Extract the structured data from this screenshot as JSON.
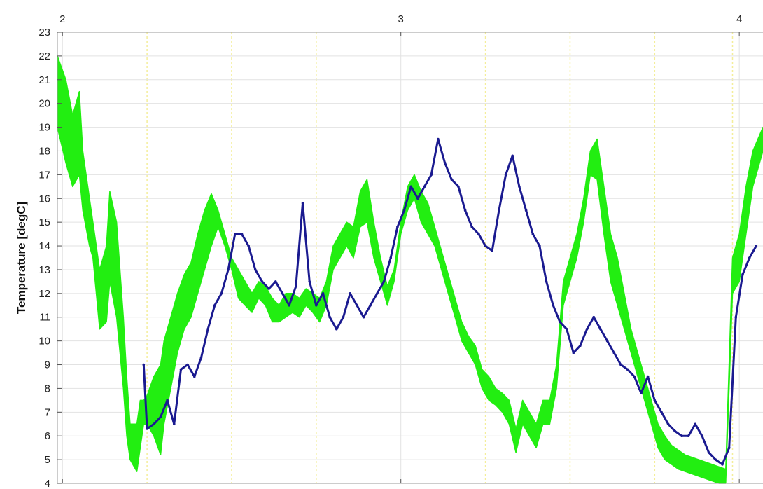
{
  "chart_data": {
    "type": "line",
    "title": "",
    "xlabel": "",
    "ylabel": "Temperature [degC]",
    "xlim": [
      1.985,
      4.07
    ],
    "ylim": [
      4,
      23
    ],
    "x_ticks": [
      2,
      3,
      4
    ],
    "x_tick_labels": [
      "2",
      "3",
      "4"
    ],
    "y_ticks": [
      4,
      5,
      6,
      7,
      8,
      9,
      10,
      11,
      12,
      13,
      14,
      15,
      16,
      17,
      18,
      19,
      20,
      21,
      22,
      23
    ],
    "y_tick_labels": [
      "4",
      "5",
      "6",
      "7",
      "8",
      "9",
      "10",
      "11",
      "12",
      "13",
      "14",
      "15",
      "16",
      "17",
      "18",
      "19",
      "20",
      "21",
      "22",
      "23"
    ],
    "x_tick_position": "top",
    "grid": true,
    "minor_vertical_lines": [
      2.25,
      2.5,
      2.75,
      3.25,
      3.5,
      3.75,
      3.98
    ],
    "colors": {
      "band": "#22ee11",
      "line": "#1a1a90",
      "grid": "#e2e2e2",
      "minor_grid": "#f4ee9a",
      "axes": "#9a9a9a"
    },
    "series": [
      {
        "style": "band",
        "x": [
          1.985,
          2.01,
          2.03,
          2.05,
          2.06,
          2.08,
          2.09,
          2.1,
          2.11,
          2.13,
          2.14,
          2.16,
          2.18,
          2.19,
          2.2,
          2.22,
          2.23,
          2.24,
          2.25,
          2.27,
          2.29,
          2.3,
          2.32,
          2.34,
          2.36,
          2.38,
          2.4,
          2.42,
          2.44,
          2.46,
          2.48,
          2.5,
          2.52,
          2.54,
          2.56,
          2.58,
          2.6,
          2.62,
          2.64,
          2.66,
          2.68,
          2.7,
          2.72,
          2.74,
          2.76,
          2.78,
          2.8,
          2.82,
          2.84,
          2.86,
          2.88,
          2.9,
          2.92,
          2.94,
          2.96,
          2.98,
          3.0,
          3.02,
          3.04,
          3.06,
          3.08,
          3.1,
          3.12,
          3.14,
          3.16,
          3.18,
          3.2,
          3.22,
          3.24,
          3.26,
          3.28,
          3.3,
          3.32,
          3.34,
          3.36,
          3.38,
          3.4,
          3.42,
          3.44,
          3.46,
          3.48,
          3.5,
          3.52,
          3.54,
          3.56,
          3.58,
          3.6,
          3.62,
          3.64,
          3.66,
          3.68,
          3.7,
          3.72,
          3.74,
          3.76,
          3.78,
          3.8,
          3.82,
          3.84,
          3.86,
          3.88,
          3.9,
          3.92,
          3.94,
          3.96,
          3.98,
          4.0,
          4.02,
          4.04,
          4.07
        ],
        "lo": [
          19.0,
          17.5,
          16.5,
          17.0,
          15.5,
          14.0,
          13.5,
          12.0,
          10.5,
          10.8,
          12.5,
          11.0,
          8.0,
          6.0,
          5.0,
          4.5,
          5.5,
          6.5,
          6.5,
          6.0,
          5.2,
          6.5,
          8.0,
          9.5,
          10.5,
          11.0,
          12.0,
          13.0,
          14.0,
          14.8,
          14.0,
          13.0,
          11.8,
          11.5,
          11.2,
          11.8,
          11.5,
          10.8,
          10.8,
          11.0,
          11.2,
          11.0,
          11.5,
          11.2,
          10.8,
          11.5,
          13.0,
          13.5,
          14.0,
          13.5,
          14.8,
          15.0,
          13.5,
          12.5,
          11.5,
          12.5,
          14.5,
          15.5,
          16.0,
          15.0,
          14.5,
          14.0,
          13.0,
          12.0,
          11.0,
          10.0,
          9.5,
          9.0,
          8.0,
          7.5,
          7.3,
          7.0,
          6.5,
          5.3,
          6.5,
          6.0,
          5.5,
          6.5,
          6.5,
          8.0,
          11.5,
          12.5,
          13.5,
          15.0,
          17.0,
          16.8,
          14.5,
          12.5,
          11.5,
          10.5,
          9.5,
          8.5,
          7.5,
          6.5,
          5.5,
          5.0,
          4.8,
          4.6,
          4.5,
          4.4,
          4.3,
          4.2,
          4.1,
          4.0,
          4.0,
          12.0,
          12.5,
          14.5,
          16.5,
          18.0
        ],
        "hi": [
          22.0,
          21.0,
          19.5,
          20.5,
          18.0,
          16.0,
          15.0,
          14.0,
          13.0,
          14.0,
          16.3,
          15.0,
          11.0,
          8.5,
          6.5,
          6.5,
          7.5,
          7.5,
          7.7,
          8.5,
          9.0,
          10.0,
          11.0,
          12.0,
          12.8,
          13.3,
          14.5,
          15.5,
          16.2,
          15.5,
          14.5,
          13.5,
          13.0,
          12.5,
          12.0,
          12.5,
          12.3,
          11.8,
          11.5,
          12.0,
          12.0,
          11.8,
          12.2,
          12.0,
          11.8,
          12.5,
          14.0,
          14.5,
          15.0,
          14.8,
          16.3,
          16.8,
          15.0,
          13.5,
          12.3,
          13.0,
          15.0,
          16.5,
          17.0,
          16.3,
          15.8,
          14.8,
          13.8,
          12.8,
          11.8,
          10.8,
          10.2,
          9.8,
          8.8,
          8.5,
          8.0,
          7.8,
          7.5,
          6.3,
          7.5,
          7.0,
          6.5,
          7.5,
          7.5,
          9.0,
          12.5,
          13.5,
          14.5,
          16.0,
          18.0,
          18.5,
          16.5,
          14.5,
          13.5,
          12.0,
          10.5,
          9.5,
          8.5,
          7.5,
          6.5,
          6.0,
          5.6,
          5.4,
          5.2,
          5.1,
          5.0,
          4.9,
          4.8,
          4.7,
          4.6,
          13.5,
          14.5,
          16.5,
          18.0,
          19.0
        ]
      },
      {
        "style": "line",
        "x": [
          2.24,
          2.25,
          2.27,
          2.29,
          2.31,
          2.33,
          2.35,
          2.37,
          2.39,
          2.41,
          2.43,
          2.45,
          2.47,
          2.49,
          2.51,
          2.53,
          2.55,
          2.57,
          2.59,
          2.61,
          2.63,
          2.65,
          2.67,
          2.69,
          2.71,
          2.73,
          2.75,
          2.77,
          2.79,
          2.81,
          2.83,
          2.85,
          2.87,
          2.89,
          2.91,
          2.93,
          2.95,
          2.97,
          2.99,
          3.01,
          3.03,
          3.05,
          3.07,
          3.09,
          3.11,
          3.13,
          3.15,
          3.17,
          3.19,
          3.21,
          3.23,
          3.25,
          3.27,
          3.29,
          3.31,
          3.33,
          3.35,
          3.37,
          3.39,
          3.41,
          3.43,
          3.45,
          3.47,
          3.49,
          3.51,
          3.53,
          3.55,
          3.57,
          3.59,
          3.61,
          3.63,
          3.65,
          3.67,
          3.69,
          3.71,
          3.73,
          3.75,
          3.77,
          3.79,
          3.81,
          3.83,
          3.85,
          3.87,
          3.89,
          3.91,
          3.93,
          3.95,
          3.97,
          3.99,
          4.01,
          4.03,
          4.05
        ],
        "y": [
          9.0,
          6.3,
          6.5,
          6.8,
          7.5,
          6.5,
          8.8,
          9.0,
          8.5,
          9.3,
          10.5,
          11.5,
          12.0,
          13.0,
          14.5,
          14.5,
          14.0,
          13.0,
          12.5,
          12.2,
          12.5,
          12.0,
          11.5,
          12.3,
          15.8,
          12.5,
          11.5,
          12.0,
          11.0,
          10.5,
          11.0,
          12.0,
          11.5,
          11.0,
          11.5,
          12.0,
          12.5,
          13.5,
          14.8,
          15.5,
          16.5,
          16.0,
          16.5,
          17.0,
          18.5,
          17.5,
          16.8,
          16.5,
          15.5,
          14.8,
          14.5,
          14.0,
          13.8,
          15.5,
          17.0,
          17.8,
          16.5,
          15.5,
          14.5,
          14.0,
          12.5,
          11.5,
          10.8,
          10.5,
          9.5,
          9.8,
          10.5,
          11.0,
          10.5,
          10.0,
          9.5,
          9.0,
          8.8,
          8.5,
          7.8,
          8.5,
          7.5,
          7.0,
          6.5,
          6.2,
          6.0,
          6.0,
          6.5,
          6.0,
          5.3,
          5.0,
          4.8,
          5.5,
          11.0,
          12.8,
          13.5,
          14.0
        ]
      }
    ]
  }
}
